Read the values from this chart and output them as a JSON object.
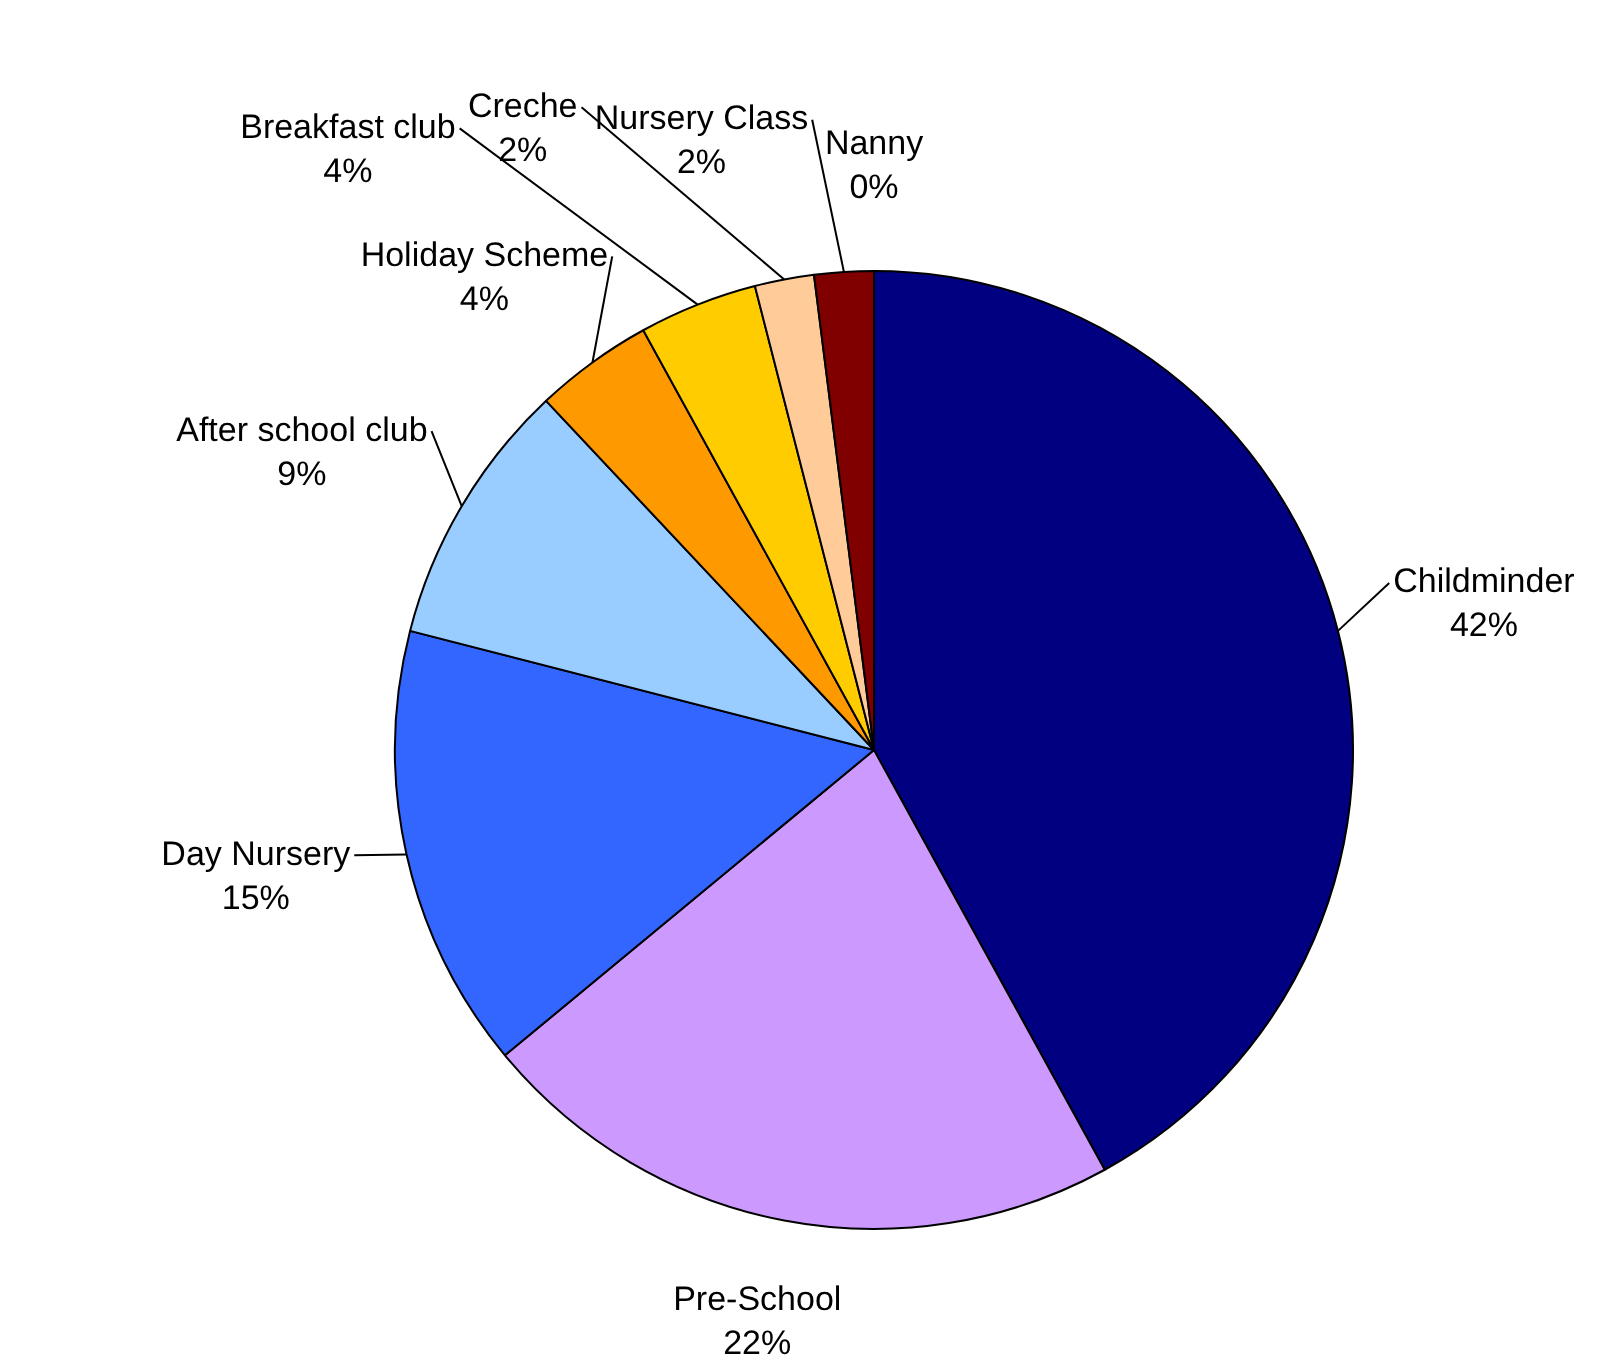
{
  "chart_data": {
    "type": "pie",
    "categories": [
      "Childminder",
      "Pre-School",
      "Day Nursery",
      "After school club",
      "Holiday Scheme",
      "Breakfast club",
      "Creche",
      "Nursery Class",
      "Nanny"
    ],
    "values": [
      42,
      22,
      15,
      9,
      4,
      4,
      2,
      2,
      0
    ],
    "value_labels": [
      "42%",
      "22%",
      "15%",
      "9%",
      "4%",
      "4%",
      "2%",
      "2%",
      "0%"
    ],
    "colors": [
      "#000080",
      "#cc99ff",
      "#3366ff",
      "#99ccff",
      "#ff9900",
      "#ffcc00",
      "#ffcc99",
      "#800000",
      "#339966"
    ],
    "legend": false
  }
}
